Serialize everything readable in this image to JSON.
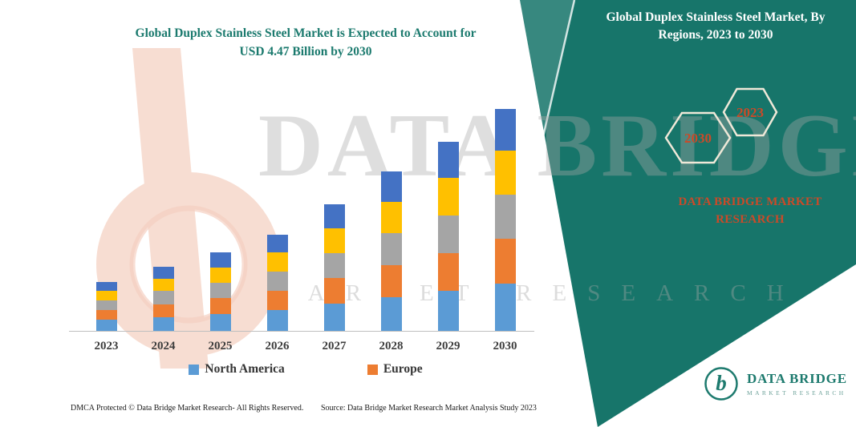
{
  "colors": {
    "teal": "#17756a",
    "accent_red": "#cb4a28",
    "axis_label_gray": "#3d3d3d",
    "watermark_gray": "#a8a8a8"
  },
  "main_title": {
    "line1": "Global Duplex Stainless Steel Market is Expected to Account for",
    "line2": "USD 4.47 Billion by 2030"
  },
  "banner": {
    "title": "Global Duplex Stainless Steel Market, By Regions, 2023 to 2030"
  },
  "hexagons": {
    "back_year": "2030",
    "front_year": "2023"
  },
  "brand_block": {
    "text": "DATA BRIDGE MARKET RESEARCH"
  },
  "watermark": {
    "line1": "DATA BRIDGE",
    "line2": "MARKET RESEARCH"
  },
  "logo": {
    "monogram": "b",
    "name": "DATA BRIDGE",
    "subtitle": "MARKET RESEARCH"
  },
  "footer": {
    "dmca": "DMCA Protected © Data Bridge Market Research-  All Rights Reserved.",
    "source": "Source: Data Bridge Market Research  Market Analysis Study 2023"
  },
  "legend": [
    {
      "label": "North America",
      "color": "#5B9BD5"
    },
    {
      "label": "Europe",
      "color": "#ED7D31"
    }
  ],
  "chart_data": {
    "type": "bar",
    "stacked": true,
    "title": "Global Duplex Stainless Steel Market is Expected to Account for USD 4.47 Billion by 2030",
    "categories": [
      "2023",
      "2024",
      "2025",
      "2026",
      "2027",
      "2028",
      "2029",
      "2030"
    ],
    "series": [
      {
        "name": "North America",
        "color": "#5B9BD5",
        "values": [
          0.22,
          0.28,
          0.34,
          0.42,
          0.55,
          0.68,
          0.8,
          0.95
        ]
      },
      {
        "name": "Europe",
        "color": "#ED7D31",
        "values": [
          0.2,
          0.26,
          0.32,
          0.39,
          0.51,
          0.65,
          0.77,
          0.9
        ]
      },
      {
        "name": "unlabeled-gray-region",
        "color": "#A5A5A5",
        "values": [
          0.19,
          0.26,
          0.31,
          0.39,
          0.51,
          0.64,
          0.76,
          0.9
        ]
      },
      {
        "name": "unlabeled-yellow-region",
        "color": "#FFC000",
        "values": [
          0.19,
          0.25,
          0.31,
          0.38,
          0.5,
          0.63,
          0.75,
          0.88
        ]
      },
      {
        "name": "unlabeled-darkblue-region",
        "color": "#4472C4",
        "values": [
          0.18,
          0.24,
          0.3,
          0.36,
          0.48,
          0.61,
          0.73,
          0.84
        ]
      }
    ],
    "totals": [
      0.98,
      1.29,
      1.58,
      1.94,
      2.55,
      3.21,
      3.81,
      4.47
    ],
    "unit": "USD billion (estimated; y-axis not labeled in figure)",
    "ylim": [
      0,
      4.6
    ],
    "grid": false,
    "legend_position": "bottom",
    "x_axis_labels_shown": true,
    "y_axis_shown": false
  }
}
